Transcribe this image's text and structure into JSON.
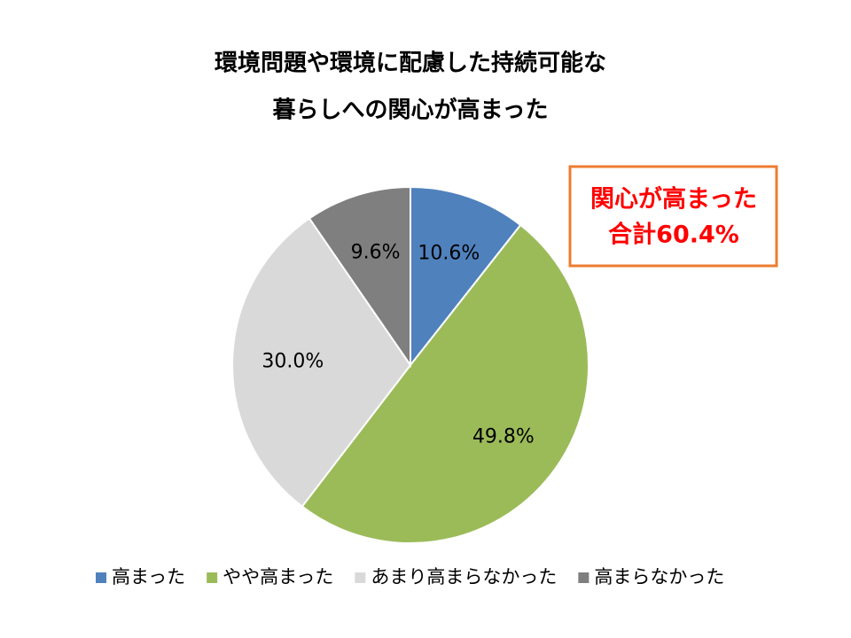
{
  "chart_data": {
    "type": "pie",
    "title": [
      "環境問題や環境に配慮した持続可能な",
      "暮らしへの関心が高まった"
    ],
    "categories": [
      "高まった",
      "やや高まった",
      "あまり高まらなかった",
      "高まらなかった"
    ],
    "values": [
      10.6,
      49.8,
      30.0,
      9.6
    ],
    "value_labels": [
      "10.6%",
      "49.8%",
      "30.0%",
      "9.6%"
    ],
    "colors": [
      "#4f81bd",
      "#9bbb59",
      "#d9d9d9",
      "#7f7f7f"
    ],
    "annotation": [
      "関心が高まった",
      "合計60.4%"
    ],
    "legend": "bottom"
  }
}
